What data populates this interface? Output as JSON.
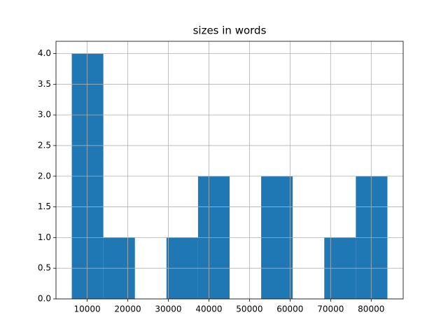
{
  "chart_data": {
    "type": "histogram",
    "title": "sizes in words",
    "bins": [
      6200,
      13980,
      21760,
      29540,
      37320,
      45100,
      52880,
      60660,
      68440,
      76220,
      84000
    ],
    "values": [
      4,
      1,
      0,
      1,
      2,
      0,
      2,
      0,
      1,
      2
    ],
    "color": "#1f77b4",
    "xlim": [
      2310,
      87890
    ],
    "xticks": [
      10000,
      20000,
      30000,
      40000,
      50000,
      60000,
      70000,
      80000
    ],
    "ylim": [
      0,
      4.2
    ],
    "yticks": [
      {
        "value": 0,
        "label": "0.0"
      },
      {
        "value": 0.5,
        "label": "0.5"
      },
      {
        "value": 1,
        "label": "1.0"
      },
      {
        "value": 1.5,
        "label": "1.5"
      },
      {
        "value": 2,
        "label": "2.0"
      },
      {
        "value": 2.5,
        "label": "2.5"
      },
      {
        "value": 3,
        "label": "3.0"
      },
      {
        "value": 3.5,
        "label": "3.5"
      },
      {
        "value": 4,
        "label": "4.0"
      }
    ],
    "grid": true
  }
}
